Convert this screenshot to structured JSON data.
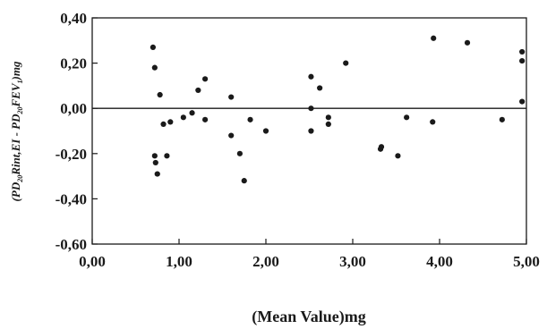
{
  "chart_data": {
    "type": "scatter",
    "title": "",
    "xlabel": "(Mean Value)mg",
    "ylabel": "(PD",
    "ylabel_sub1": "20",
    "ylabel_mid": "Rint,EI - PD",
    "ylabel_sub2": "20",
    "ylabel_end": "FEV",
    "ylabel_sub3": "1",
    "ylabel_tail": ")mg",
    "xlim": [
      0,
      5
    ],
    "ylim": [
      -0.6,
      0.4
    ],
    "x_ticks": [
      0,
      1,
      2,
      3,
      4,
      5
    ],
    "x_tick_labels": [
      "0,00",
      "1,00",
      "2,00",
      "3,00",
      "4,00",
      "5,00"
    ],
    "y_ticks": [
      0.4,
      0.2,
      0,
      -0.2,
      -0.4,
      -0.6
    ],
    "y_tick_labels": [
      "0,40",
      "0,20",
      "0,00",
      "-0,20",
      "-0,40",
      "-0,60"
    ],
    "reference_line_y": 0,
    "grid": false,
    "points": [
      {
        "x": 0.7,
        "y": 0.27
      },
      {
        "x": 0.72,
        "y": 0.18
      },
      {
        "x": 0.72,
        "y": -0.21
      },
      {
        "x": 0.73,
        "y": -0.24
      },
      {
        "x": 0.75,
        "y": -0.29
      },
      {
        "x": 0.78,
        "y": 0.06
      },
      {
        "x": 0.82,
        "y": -0.07
      },
      {
        "x": 0.86,
        "y": -0.21
      },
      {
        "x": 0.9,
        "y": -0.06
      },
      {
        "x": 1.05,
        "y": -0.04
      },
      {
        "x": 1.15,
        "y": -0.02
      },
      {
        "x": 1.22,
        "y": 0.08
      },
      {
        "x": 1.3,
        "y": 0.13
      },
      {
        "x": 1.3,
        "y": -0.05
      },
      {
        "x": 1.6,
        "y": 0.05
      },
      {
        "x": 1.6,
        "y": -0.12
      },
      {
        "x": 1.7,
        "y": -0.2
      },
      {
        "x": 1.75,
        "y": -0.32
      },
      {
        "x": 1.82,
        "y": -0.05
      },
      {
        "x": 2.0,
        "y": -0.1
      },
      {
        "x": 2.52,
        "y": 0.14
      },
      {
        "x": 2.52,
        "y": 0.0
      },
      {
        "x": 2.52,
        "y": -0.1
      },
      {
        "x": 2.62,
        "y": 0.09
      },
      {
        "x": 2.72,
        "y": -0.04
      },
      {
        "x": 2.72,
        "y": -0.07
      },
      {
        "x": 2.92,
        "y": 0.2
      },
      {
        "x": 3.32,
        "y": -0.18
      },
      {
        "x": 3.33,
        "y": -0.17
      },
      {
        "x": 3.52,
        "y": -0.21
      },
      {
        "x": 3.62,
        "y": -0.04
      },
      {
        "x": 3.92,
        "y": -0.06
      },
      {
        "x": 3.93,
        "y": 0.31
      },
      {
        "x": 4.32,
        "y": 0.29
      },
      {
        "x": 4.72,
        "y": -0.05
      },
      {
        "x": 4.95,
        "y": 0.25
      },
      {
        "x": 4.95,
        "y": 0.21
      },
      {
        "x": 4.95,
        "y": 0.03
      }
    ]
  }
}
